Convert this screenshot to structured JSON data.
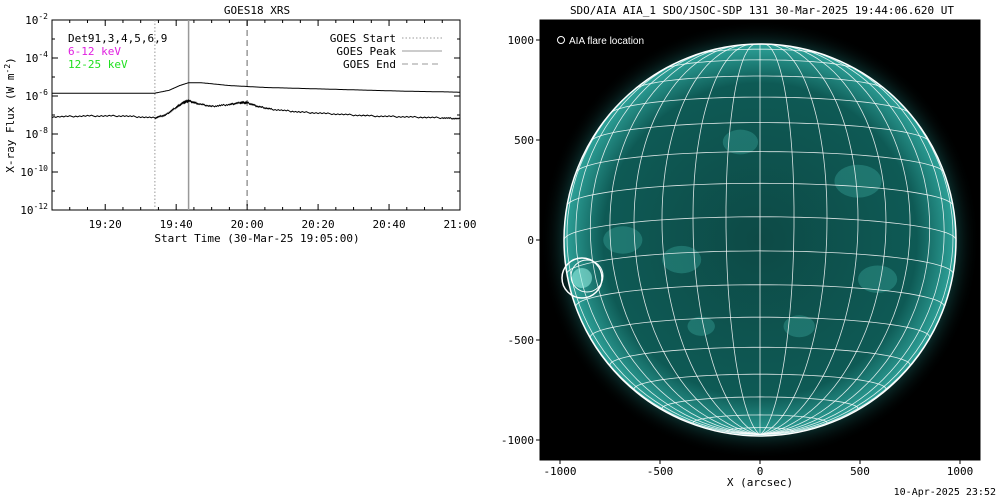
{
  "chart_data": [
    {
      "type": "line",
      "title": "GOES18 XRS",
      "xlabel": "Start Time (30-Mar-25 19:05:00)",
      "ylabel_main": "X-ray Flux (W m",
      "ylabel_exp": "-2",
      "ylabel_close": ")",
      "y_scale": "log",
      "ylim_exp": [
        -12,
        -2
      ],
      "x_range_min": [
        0,
        115
      ],
      "x_ticks": [
        {
          "min": 15,
          "label": "19:20"
        },
        {
          "min": 35,
          "label": "19:40"
        },
        {
          "min": 55,
          "label": "20:00"
        },
        {
          "min": 75,
          "label": "20:20"
        },
        {
          "min": 95,
          "label": "20:40"
        },
        {
          "min": 115,
          "label": "21:00"
        }
      ],
      "y_ticks": [
        {
          "exp": -2,
          "base": "10",
          "sup": "-2"
        },
        {
          "exp": -4,
          "base": "10",
          "sup": "-4"
        },
        {
          "exp": -6,
          "base": "10",
          "sup": "-6"
        },
        {
          "exp": -8,
          "base": "10",
          "sup": "-8"
        },
        {
          "exp": -10,
          "base": "10",
          "sup": "-10"
        },
        {
          "exp": -12,
          "base": "10",
          "sup": "-12"
        }
      ],
      "legend_left": [
        {
          "text": "Det91,3,4,5,6,9",
          "color": "#000000"
        },
        {
          "text": "6-12 keV",
          "color": "#e020e0"
        },
        {
          "text": "12-25 keV",
          "color": "#20e020"
        }
      ],
      "legend_right": [
        {
          "text": "GOES Start",
          "style": "dotted"
        },
        {
          "text": "GOES Peak",
          "style": "solid"
        },
        {
          "text": "GOES End",
          "style": "dashed"
        }
      ],
      "markers_min": {
        "start": 29,
        "peak": 38.5,
        "end": 55
      },
      "series": [
        {
          "key": "long",
          "color": "#000000",
          "x_min": [
            0,
            20,
            29,
            33,
            36,
            38.5,
            42,
            50,
            55,
            60,
            70,
            80,
            90,
            100,
            110,
            115
          ],
          "log10": [
            -5.85,
            -5.85,
            -5.85,
            -5.7,
            -5.45,
            -5.3,
            -5.3,
            -5.45,
            -5.5,
            -5.55,
            -5.6,
            -5.65,
            -5.7,
            -5.75,
            -5.78,
            -5.8
          ]
        },
        {
          "key": "short",
          "color": "#000000",
          "x_min": [
            0,
            10,
            20,
            29,
            32,
            35,
            37,
            38.5,
            41,
            45,
            50,
            53,
            55,
            58,
            62,
            70,
            80,
            90,
            100,
            110,
            115
          ],
          "log10": [
            -7.1,
            -7.05,
            -7.05,
            -7.15,
            -7.0,
            -6.6,
            -6.35,
            -6.25,
            -6.4,
            -6.55,
            -6.45,
            -6.35,
            -6.35,
            -6.55,
            -6.7,
            -6.85,
            -6.95,
            -7.05,
            -7.1,
            -7.15,
            -7.2
          ]
        }
      ]
    },
    {
      "type": "map",
      "title": "SDO/AIA AIA_1 SDO/JSOC-SDP 131 30-Mar-2025 19:44:06.620 UT",
      "xlabel": "X (arcsec)",
      "xlim": [
        -1100,
        1100
      ],
      "ylim": [
        -1100,
        1100
      ],
      "x_ticks": [
        -1000,
        -500,
        0,
        500,
        1000
      ],
      "y_ticks": [
        -1000,
        -500,
        0,
        500,
        1000
      ],
      "solar_radius_arcsec": 980,
      "flare_location_arcsec": [
        -890,
        -190
      ],
      "legend": "AIA flare location",
      "disk_color": "#0b5a52",
      "grid_color": "#ffffff"
    }
  ],
  "footer": {
    "timestamp": "10-Apr-2025 23:52"
  }
}
